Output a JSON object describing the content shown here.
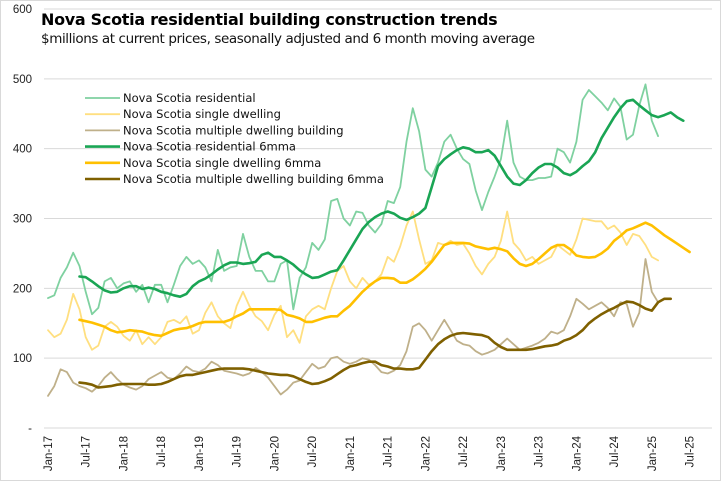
{
  "chart_data": {
    "type": "line",
    "title": "Nova Scotia residential building construction trends",
    "subtitle": "$millions at current prices, seasonally adjusted and 6 month moving average",
    "xlabel": "",
    "ylabel": "",
    "ylim": [
      0,
      600
    ],
    "yticks": [
      0,
      100,
      200,
      300,
      400,
      500,
      600
    ],
    "ytick_labels": [
      "-",
      "100",
      "200",
      "300",
      "400",
      "500",
      "600"
    ],
    "x_start": "Jan-17",
    "x_months_span": 102,
    "xtick_labels": [
      "Jan-17",
      "Jul-17",
      "Jan-18",
      "Jul-18",
      "Jan-19",
      "Jul-19",
      "Jan-20",
      "Jul-20",
      "Jan-21",
      "Jul-21",
      "Jan-22",
      "Jul-22",
      "Jan-23",
      "Jul-23",
      "Jan-24",
      "Jul-24",
      "Jan-25",
      "Jul-25"
    ],
    "grid": true,
    "legend_position": "top-left",
    "series": [
      {
        "name": "Nova Scotia residential",
        "color": "#7fd1a0",
        "width": 1.8,
        "start_month": 0,
        "values": [
          186,
          190,
          215,
          230,
          251,
          232,
          195,
          163,
          172,
          210,
          215,
          200,
          207,
          210,
          195,
          205,
          180,
          205,
          205,
          180,
          205,
          232,
          245,
          235,
          240,
          230,
          210,
          255,
          225,
          230,
          232,
          278,
          245,
          225,
          225,
          210,
          210,
          235,
          240,
          170,
          215,
          230,
          265,
          255,
          270,
          325,
          328,
          300,
          290,
          310,
          308,
          290,
          280,
          292,
          325,
          322,
          345,
          410,
          458,
          425,
          370,
          360,
          380,
          410,
          420,
          400,
          385,
          378,
          340,
          312,
          338,
          360,
          385,
          440,
          380,
          360,
          355,
          355,
          358,
          358,
          360,
          400,
          395,
          380,
          410,
          470,
          484,
          475,
          466,
          455,
          472,
          460,
          413,
          420,
          462,
          492,
          440,
          418
        ]
      },
      {
        "name": "Nova Scotia single dwelling",
        "color": "#ffdf80",
        "width": 1.8,
        "start_month": 0,
        "values": [
          140,
          130,
          135,
          155,
          192,
          170,
          130,
          112,
          118,
          145,
          152,
          145,
          132,
          125,
          140,
          120,
          130,
          120,
          130,
          152,
          155,
          150,
          160,
          135,
          140,
          165,
          180,
          160,
          150,
          143,
          175,
          195,
          175,
          160,
          153,
          140,
          162,
          175,
          130,
          140,
          122,
          160,
          170,
          175,
          170,
          200,
          225,
          232,
          210,
          200,
          215,
          205,
          210,
          220,
          245,
          238,
          260,
          290,
          310,
          270,
          235,
          240,
          265,
          262,
          268,
          262,
          264,
          250,
          232,
          220,
          235,
          245,
          268,
          310,
          265,
          255,
          240,
          245,
          235,
          240,
          245,
          262,
          255,
          248,
          270,
          300,
          298,
          296,
          296,
          285,
          290,
          280,
          262,
          278,
          275,
          262,
          245,
          240
        ]
      },
      {
        "name": "Nova Scotia multiple dwelling building",
        "color": "#bfb08a",
        "width": 1.8,
        "start_month": 0,
        "values": [
          46,
          60,
          84,
          80,
          65,
          60,
          57,
          52,
          60,
          72,
          80,
          70,
          62,
          58,
          55,
          60,
          70,
          75,
          80,
          72,
          70,
          78,
          88,
          82,
          80,
          85,
          95,
          90,
          82,
          80,
          78,
          75,
          78,
          86,
          80,
          72,
          60,
          48,
          55,
          65,
          68,
          80,
          92,
          85,
          88,
          100,
          102,
          95,
          92,
          95,
          100,
          98,
          90,
          80,
          78,
          82,
          90,
          110,
          145,
          150,
          140,
          125,
          140,
          155,
          140,
          125,
          120,
          118,
          110,
          105,
          108,
          112,
          120,
          128,
          120,
          112,
          115,
          118,
          122,
          128,
          138,
          135,
          140,
          160,
          185,
          178,
          170,
          175,
          180,
          172,
          160,
          180,
          178,
          145,
          165,
          242,
          195,
          180
        ]
      },
      {
        "name": "Nova Scotia residential 6mma",
        "color": "#1aa554",
        "width": 2.6,
        "start_month": 5,
        "values": [
          217,
          216,
          210,
          203,
          197,
          194,
          195,
          200,
          203,
          203,
          199,
          201,
          199,
          195,
          193,
          190,
          188,
          192,
          203,
          210,
          214,
          220,
          227,
          233,
          237,
          237,
          235,
          236,
          238,
          248,
          251,
          245,
          245,
          240,
          234,
          226,
          220,
          215,
          216,
          220,
          224,
          226,
          240,
          255,
          270,
          285,
          295,
          302,
          307,
          310,
          307,
          301,
          298,
          302,
          307,
          315,
          345,
          375,
          385,
          392,
          398,
          402,
          400,
          395,
          395,
          398,
          390,
          375,
          360,
          350,
          348,
          355,
          365,
          373,
          378,
          378,
          373,
          365,
          362,
          367,
          375,
          382,
          395,
          415,
          430,
          445,
          458,
          468,
          470,
          462,
          455,
          448,
          445,
          448,
          452,
          445,
          440
        ]
      },
      {
        "name": "Nova Scotia single dwelling 6mma",
        "color": "#ffc000",
        "width": 2.6,
        "start_month": 5,
        "values": [
          155,
          153,
          151,
          148,
          145,
          140,
          137,
          138,
          140,
          139,
          138,
          135,
          133,
          132,
          136,
          140,
          142,
          143,
          146,
          150,
          152,
          152,
          152,
          152,
          155,
          160,
          164,
          170,
          170,
          170,
          170,
          170,
          169,
          162,
          160,
          157,
          152,
          152,
          155,
          158,
          160,
          160,
          168,
          175,
          185,
          195,
          203,
          210,
          215,
          215,
          214,
          208,
          208,
          213,
          220,
          228,
          238,
          250,
          262,
          265,
          265,
          265,
          264,
          260,
          258,
          256,
          258,
          256,
          253,
          243,
          235,
          232,
          235,
          242,
          250,
          258,
          262,
          262,
          256,
          247,
          245,
          244,
          245,
          250,
          257,
          268,
          275,
          283,
          286,
          290,
          294,
          290,
          283,
          276,
          270,
          264,
          258,
          252
        ]
      },
      {
        "name": "Nova Scotia multiple dwelling building 6mma",
        "color": "#7f6000",
        "width": 2.6,
        "start_month": 5,
        "values": [
          65,
          64,
          62,
          58,
          59,
          60,
          62,
          63,
          63,
          63,
          63,
          62,
          62,
          63,
          66,
          70,
          74,
          76,
          76,
          78,
          80,
          82,
          84,
          85,
          85,
          85,
          85,
          84,
          82,
          80,
          78,
          77,
          76,
          76,
          74,
          70,
          66,
          63,
          64,
          67,
          71,
          77,
          83,
          88,
          90,
          93,
          95,
          95,
          90,
          88,
          85,
          85,
          84,
          84,
          86,
          98,
          110,
          120,
          127,
          132,
          135,
          136,
          135,
          134,
          133,
          130,
          122,
          116,
          112,
          112,
          112,
          112,
          113,
          115,
          117,
          118,
          120,
          125,
          128,
          133,
          140,
          150,
          157,
          163,
          168,
          172,
          177,
          181,
          180,
          176,
          171,
          168,
          180,
          185,
          185
        ]
      }
    ]
  }
}
